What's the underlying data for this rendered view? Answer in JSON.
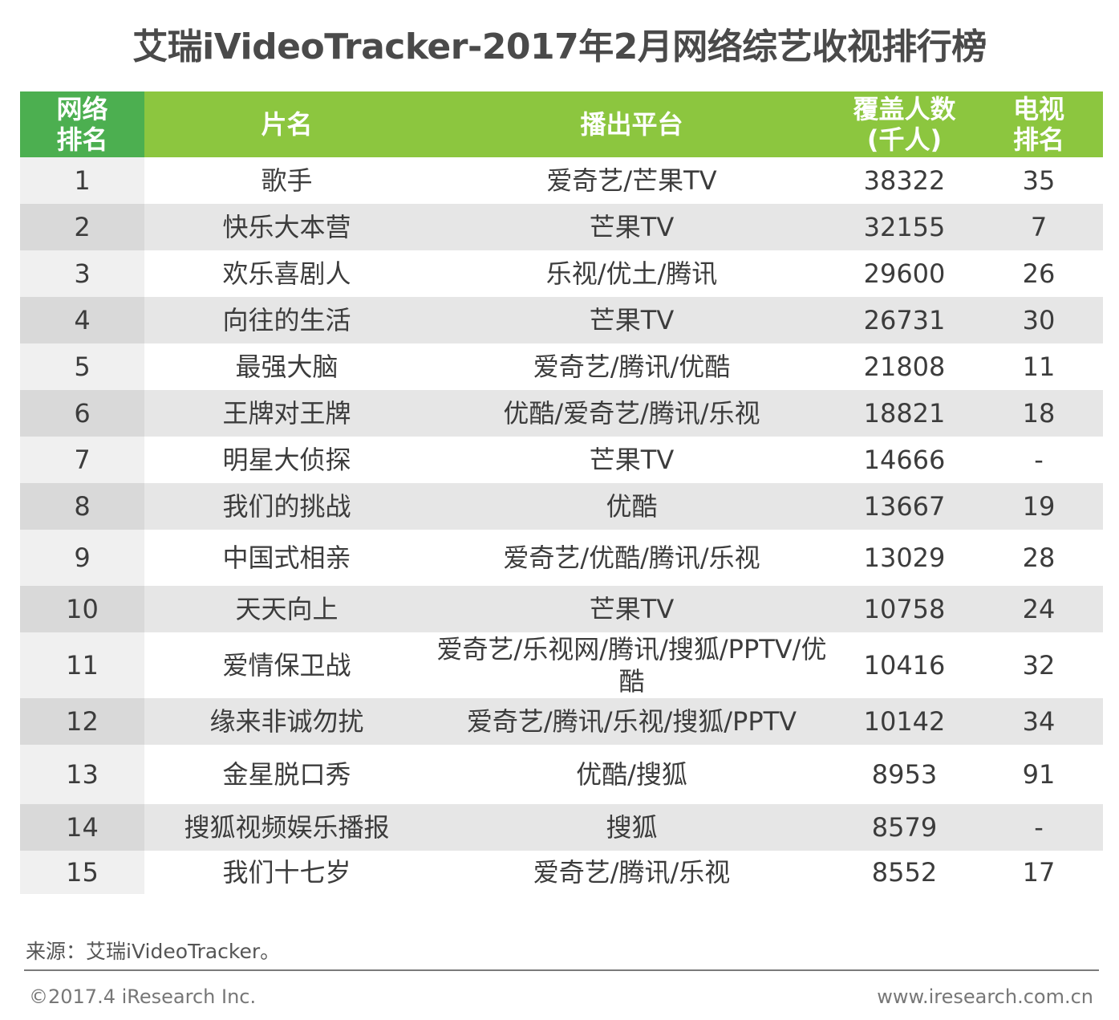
{
  "chart_data": {
    "type": "table",
    "title": "艾瑞iVideoTracker-2017年2月网络综艺收视排行榜",
    "columns": [
      [
        "网络",
        "排名"
      ],
      [
        "片名"
      ],
      [
        "播出平台"
      ],
      [
        "覆盖人数",
        "(千人)"
      ],
      [
        "电视",
        "排名"
      ]
    ],
    "rows": [
      {
        "rank": "1",
        "name": "歌手",
        "platform": "爱奇艺/芒果TV",
        "coverage": "38322",
        "tv_rank": "35"
      },
      {
        "rank": "2",
        "name": "快乐大本营",
        "platform": "芒果TV",
        "coverage": "32155",
        "tv_rank": "7"
      },
      {
        "rank": "3",
        "name": "欢乐喜剧人",
        "platform": "乐视/优土/腾讯",
        "coverage": "29600",
        "tv_rank": "26"
      },
      {
        "rank": "4",
        "name": "向往的生活",
        "platform": "芒果TV",
        "coverage": "26731",
        "tv_rank": "30"
      },
      {
        "rank": "5",
        "name": "最强大脑",
        "platform": "爱奇艺/腾讯/优酷",
        "coverage": "21808",
        "tv_rank": "11"
      },
      {
        "rank": "6",
        "name": "王牌对王牌",
        "platform": "优酷/爱奇艺/腾讯/乐视",
        "coverage": "18821",
        "tv_rank": "18"
      },
      {
        "rank": "7",
        "name": "明星大侦探",
        "platform": "芒果TV",
        "coverage": "14666",
        "tv_rank": "-"
      },
      {
        "rank": "8",
        "name": "我们的挑战",
        "platform": "优酷",
        "coverage": "13667",
        "tv_rank": "19"
      },
      {
        "rank": "9",
        "name": "中国式相亲",
        "platform": "爱奇艺/优酷/腾讯/乐视",
        "coverage": "13029",
        "tv_rank": "28"
      },
      {
        "rank": "10",
        "name": "天天向上",
        "platform": "芒果TV",
        "coverage": "10758",
        "tv_rank": "24"
      },
      {
        "rank": "11",
        "name": "爱情保卫战",
        "platform": "爱奇艺/乐视网/腾讯/搜狐/PPTV/优酷",
        "coverage": "10416",
        "tv_rank": "32"
      },
      {
        "rank": "12",
        "name": "缘来非诚勿扰",
        "platform": "爱奇艺/腾讯/乐视/搜狐/PPTV",
        "coverage": "10142",
        "tv_rank": "34"
      },
      {
        "rank": "13",
        "name": "金星脱口秀",
        "platform": "优酷/搜狐",
        "coverage": "8953",
        "tv_rank": "91"
      },
      {
        "rank": "14",
        "name": "搜狐视频娱乐播报",
        "platform": "搜狐",
        "coverage": "8579",
        "tv_rank": "-"
      },
      {
        "rank": "15",
        "name": "我们十七岁",
        "platform": "爱奇艺/腾讯/乐视",
        "coverage": "8552",
        "tv_rank": "17"
      }
    ]
  },
  "footer": {
    "source": "来源：艾瑞iVideoTracker。",
    "copyright": "©2017.4 iResearch Inc.",
    "website": "www.iresearch.com.cn"
  },
  "colors": {
    "header_green": "#8cc63f",
    "header_dark_green": "#4caf50",
    "row_alt": "#e6e6e6"
  }
}
